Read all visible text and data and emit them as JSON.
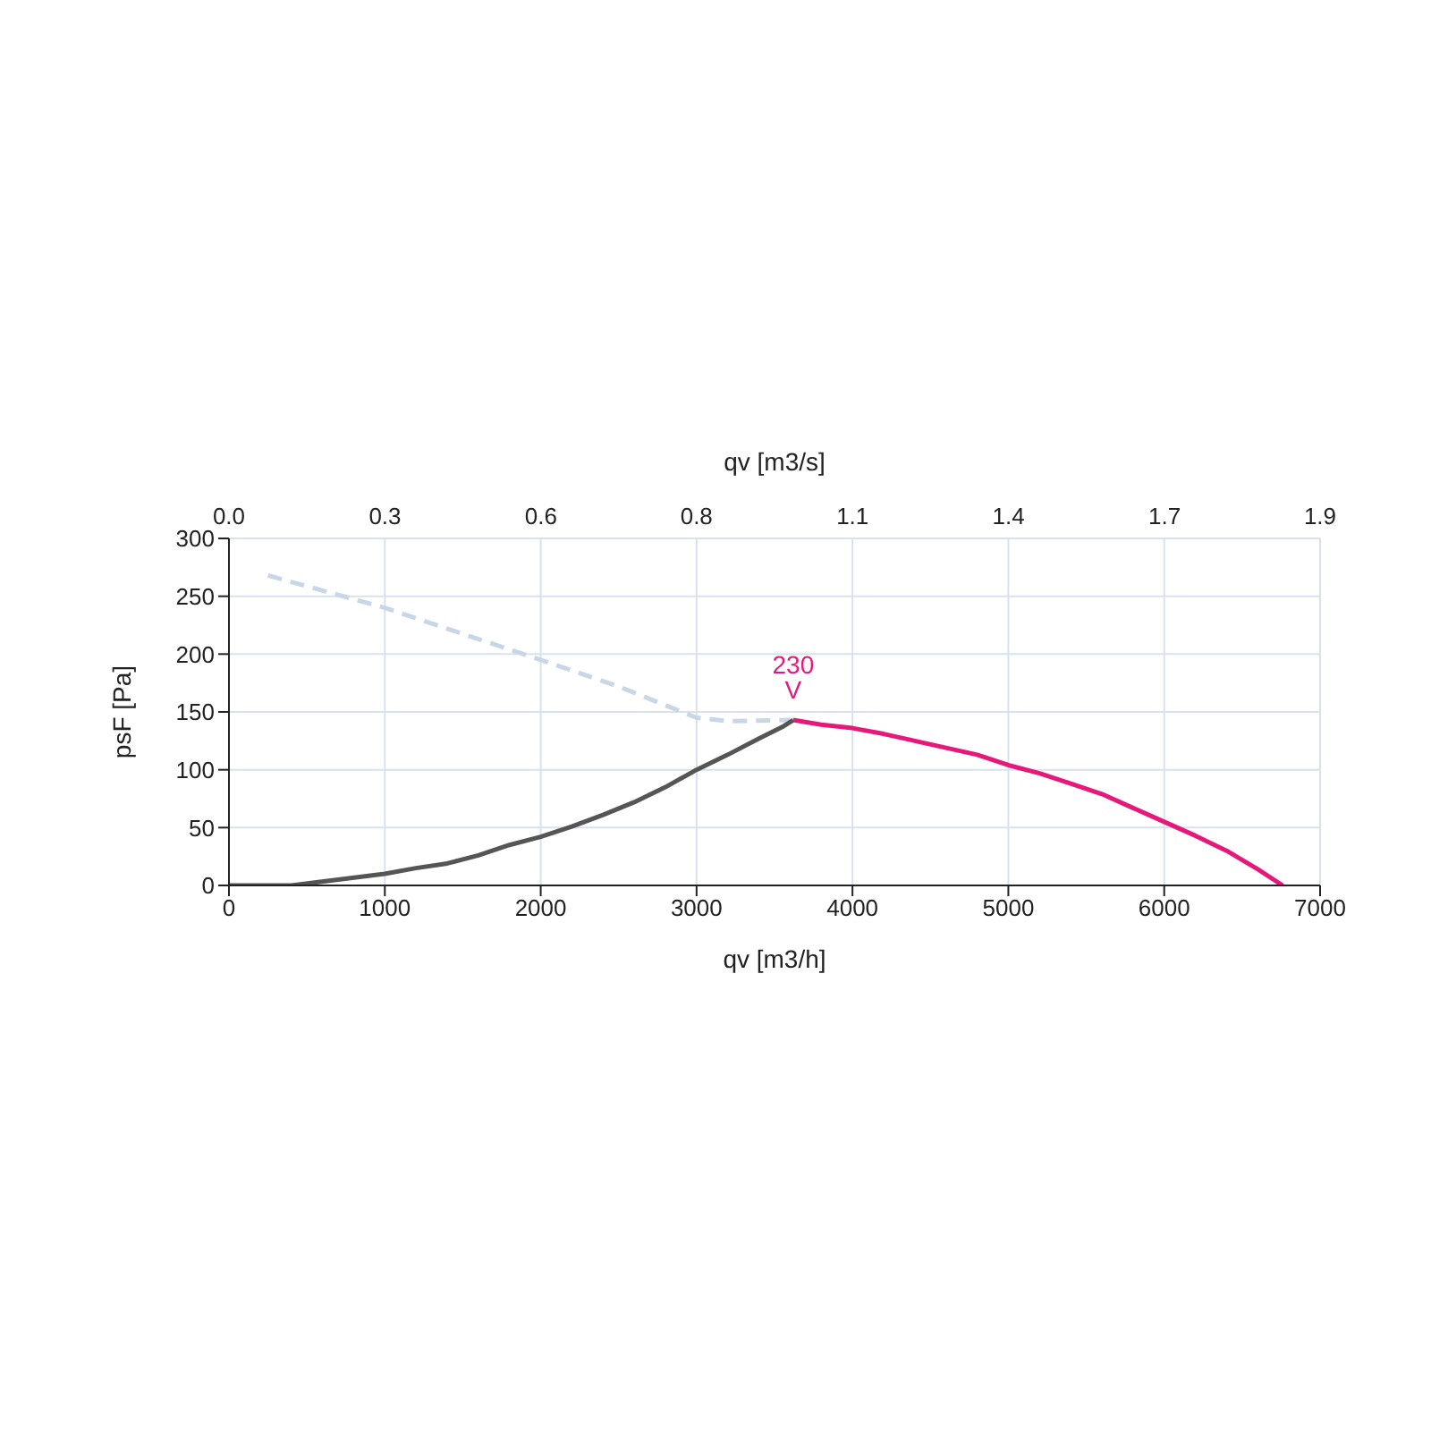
{
  "chart_data": {
    "type": "line",
    "xlabel": "qv [m3/h]",
    "ylabel": "psF [Pa]",
    "x2label": "qv [m3/s]",
    "xlim": [
      0,
      7000
    ],
    "xticks": [
      0,
      1000,
      2000,
      3000,
      4000,
      5000,
      6000,
      7000
    ],
    "x2lim": [
      0,
      1.944
    ],
    "x2ticks": [
      {
        "value": 0,
        "label": "0.0"
      },
      {
        "value": 0.278,
        "label": "0.3"
      },
      {
        "value": 0.556,
        "label": "0.6"
      },
      {
        "value": 0.833,
        "label": "0.8"
      },
      {
        "value": 1.111,
        "label": "1.1"
      },
      {
        "value": 1.389,
        "label": "1.4"
      },
      {
        "value": 1.667,
        "label": "1.7"
      },
      {
        "value": 1.944,
        "label": "1.9"
      }
    ],
    "ylim": [
      0,
      300
    ],
    "yticks": [
      0,
      50,
      100,
      150,
      200,
      250,
      300
    ],
    "grid": true,
    "legend": false,
    "marker": "none",
    "series": [
      {
        "color": "#c9d6e6",
        "line_style": "dashed",
        "x": [
          250,
          1000,
          2000,
          2500,
          3000,
          3200,
          3600
        ],
        "values": [
          268,
          240,
          195,
          172,
          145,
          142,
          143
        ]
      },
      {
        "color": "#555555",
        "line_style": "solid",
        "x": [
          0,
          400,
          700,
          1000,
          1200,
          1400,
          1600,
          1800,
          2000,
          2200,
          2400,
          2600,
          2800,
          3000,
          3200,
          3400,
          3550,
          3620
        ],
        "values": [
          0,
          0,
          5,
          10,
          15,
          19,
          26,
          35,
          42,
          51,
          61,
          72,
          85,
          100,
          113,
          127,
          137,
          143
        ]
      },
      {
        "name": "230 V",
        "color": "#e6197a",
        "line_style": "solid",
        "x": [
          3620,
          3800,
          4000,
          4200,
          4400,
          4600,
          4800,
          5000,
          5200,
          5400,
          5600,
          5800,
          6000,
          6200,
          6400,
          6600,
          6760
        ],
        "values": [
          143,
          139,
          136,
          131,
          125,
          119,
          113,
          104,
          97,
          88,
          79,
          67,
          55,
          43,
          30,
          14,
          0
        ]
      }
    ]
  }
}
